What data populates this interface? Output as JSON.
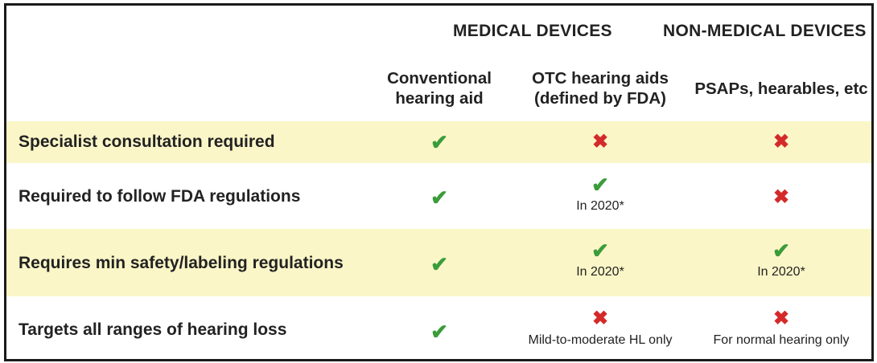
{
  "group_headers": {
    "medical": "MEDICAL DEVICES",
    "non_medical": "NON-MEDICAL DEVICES"
  },
  "columns": [
    {
      "line1": "Conventional",
      "line2": "hearing aid"
    },
    {
      "line1": "OTC hearing aids",
      "line2": "(defined by FDA)"
    },
    {
      "line1": "PSAPs, hearables, etc",
      "line2": ""
    }
  ],
  "rows": [
    {
      "label": "Specialist consultation required",
      "shaded": true,
      "cells": [
        {
          "mark": "✔",
          "status": "yes",
          "note": ""
        },
        {
          "mark": "✖",
          "status": "no",
          "note": ""
        },
        {
          "mark": "✖",
          "status": "no",
          "note": ""
        }
      ]
    },
    {
      "label": "Required to follow FDA regulations",
      "shaded": false,
      "cells": [
        {
          "mark": "✔",
          "status": "yes",
          "note": ""
        },
        {
          "mark": "✔",
          "status": "yes",
          "note": "In 2020*"
        },
        {
          "mark": "✖",
          "status": "no",
          "note": ""
        }
      ]
    },
    {
      "label": "Requires min safety/labeling regulations",
      "shaded": true,
      "cells": [
        {
          "mark": "✔",
          "status": "yes",
          "note": ""
        },
        {
          "mark": "✔",
          "status": "yes",
          "note": "In 2020*"
        },
        {
          "mark": "✔",
          "status": "yes",
          "note": "In 2020*"
        }
      ]
    },
    {
      "label": "Targets all ranges of hearing loss",
      "shaded": false,
      "cells": [
        {
          "mark": "✔",
          "status": "yes",
          "note": ""
        },
        {
          "mark": "✖",
          "status": "no",
          "note": "Mild-to-moderate HL only"
        },
        {
          "mark": "✖",
          "status": "no",
          "note": "For normal hearing only"
        }
      ]
    }
  ],
  "colors": {
    "check": "#3a9c3a",
    "cross": "#d42a2a",
    "row_shade": "#fbf6c7"
  }
}
